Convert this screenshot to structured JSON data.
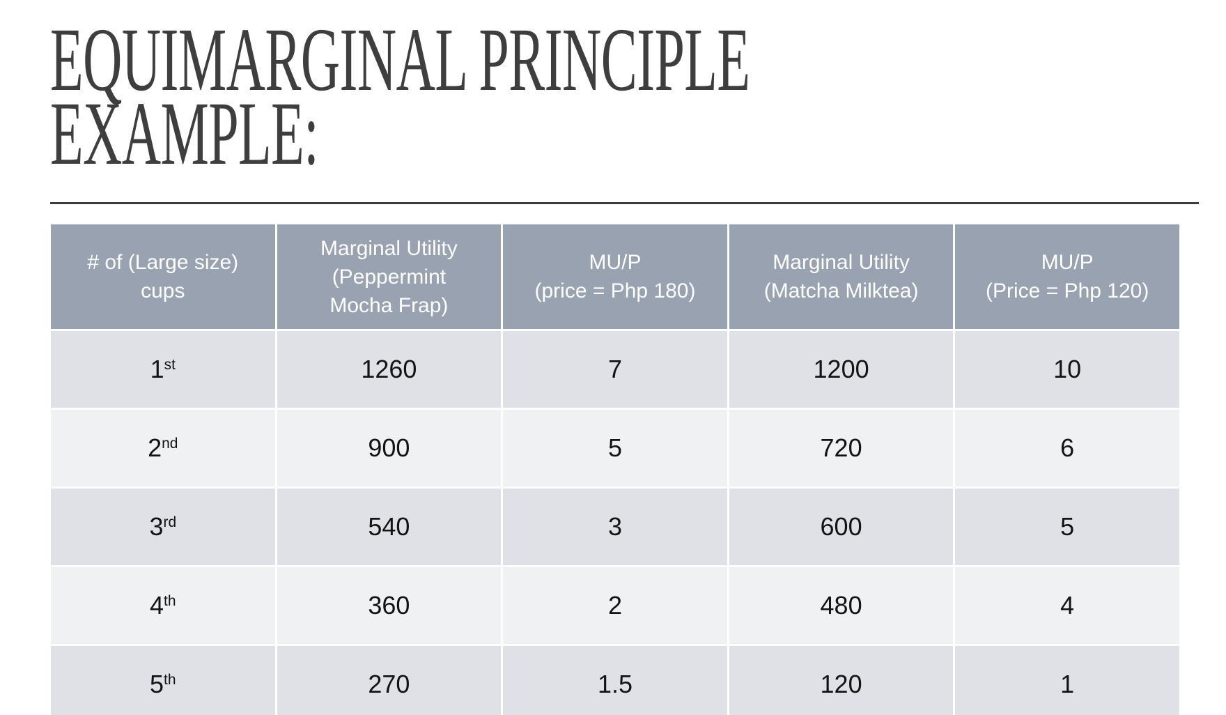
{
  "slide": {
    "title": {
      "line1": "EQUIMARGINAL PRINCIPLE",
      "line2": "EXAMPLE:"
    }
  },
  "table": {
    "headers": [
      {
        "text": "# of (Large size)\ncups"
      },
      {
        "text": "Marginal Utility\n(Peppermint\nMocha Frap)"
      },
      {
        "text": "MU/P\n(price = Php 180)"
      },
      {
        "text": "Marginal Utility\n(Matcha Milktea)"
      },
      {
        "text": "MU/P\n(Price = Php 120)"
      }
    ],
    "rows": [
      {
        "ordinal": "1",
        "suffix": "st",
        "cells": [
          "1260",
          "7",
          "1200",
          "10"
        ]
      },
      {
        "ordinal": "2",
        "suffix": "nd",
        "cells": [
          "900",
          "5",
          "720",
          "6"
        ]
      },
      {
        "ordinal": "3",
        "suffix": "rd",
        "cells": [
          "540",
          "3",
          "600",
          "5"
        ]
      },
      {
        "ordinal": "4",
        "suffix": "th",
        "cells": [
          "360",
          "2",
          "480",
          "4"
        ]
      },
      {
        "ordinal": "5",
        "suffix": "th",
        "cells": [
          "270",
          "1.5",
          "120",
          "1"
        ]
      }
    ]
  },
  "colors": {
    "header_bg": "#98a2b1",
    "header_text": "#ffffff",
    "row_dark": "#e0e1e6",
    "row_light": "#f0f1f3",
    "cell_text": "#131313",
    "title_text": "#3e3e3e",
    "divider": "#3d3d3d",
    "page_bg": "#ffffff"
  }
}
